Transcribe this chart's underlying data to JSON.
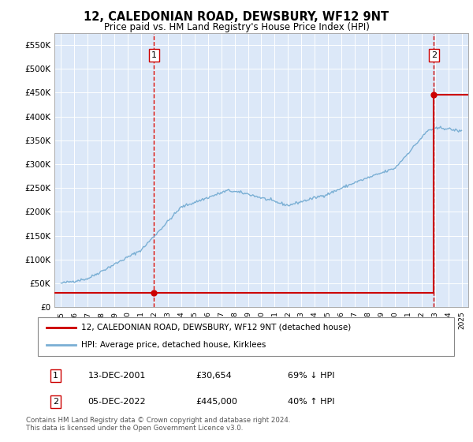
{
  "title": "12, CALEDONIAN ROAD, DEWSBURY, WF12 9NT",
  "subtitle": "Price paid vs. HM Land Registry's House Price Index (HPI)",
  "plot_bg_color": "#dce8f8",
  "hpi_color": "#7aafd4",
  "sale_color": "#cc0000",
  "vline_color": "#cc0000",
  "ylim": [
    0,
    575000
  ],
  "yticks": [
    0,
    50000,
    100000,
    150000,
    200000,
    250000,
    300000,
    350000,
    400000,
    450000,
    500000,
    550000
  ],
  "sale1_date": 2001.958,
  "sale1_price": 30654,
  "sale2_date": 2022.917,
  "sale2_price": 445000,
  "legend_label1": "12, CALEDONIAN ROAD, DEWSBURY, WF12 9NT (detached house)",
  "legend_label2": "HPI: Average price, detached house, Kirklees",
  "table_row1": [
    "1",
    "13-DEC-2001",
    "£30,654",
    "69% ↓ HPI"
  ],
  "table_row2": [
    "2",
    "05-DEC-2022",
    "£445,000",
    "40% ↑ HPI"
  ],
  "footnote": "Contains HM Land Registry data © Crown copyright and database right 2024.\nThis data is licensed under the Open Government Licence v3.0.",
  "xmin": 1994.5,
  "xmax": 2025.5
}
